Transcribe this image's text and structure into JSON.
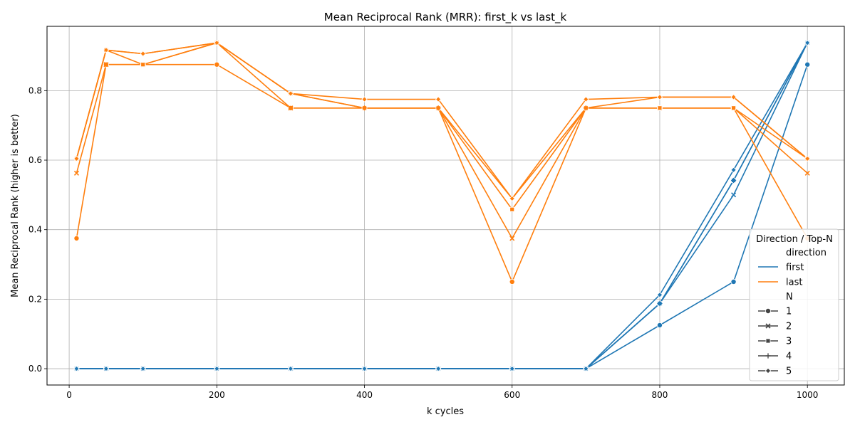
{
  "chart_data": {
    "type": "line",
    "title": "Mean Reciprocal Rank (MRR): first_k vs last_k",
    "xlabel": "k cycles",
    "ylabel": "Mean Reciprocal Rank (higher is better)",
    "xlim": [
      -30,
      1050
    ],
    "ylim": [
      -0.047,
      0.985
    ],
    "x_ticks": [
      0,
      200,
      400,
      600,
      800,
      1000
    ],
    "y_ticks": [
      0.0,
      0.2,
      0.4,
      0.6,
      0.8
    ],
    "y_tick_labels": [
      "0.0",
      "0.2",
      "0.4",
      "0.6",
      "0.8"
    ],
    "grid": true,
    "x": [
      10,
      50,
      100,
      200,
      300,
      400,
      500,
      600,
      700,
      800,
      900,
      1000
    ],
    "colors": {
      "first": "#1f77b4",
      "last": "#ff7f0e",
      "legend_gray": "#444444"
    },
    "series": [
      {
        "direction": "first",
        "N": "1",
        "marker": "circle",
        "values": [
          0,
          0,
          0,
          0,
          0,
          0,
          0,
          0,
          0,
          0.125,
          0.25,
          0.875
        ]
      },
      {
        "direction": "first",
        "N": "2",
        "marker": "x",
        "values": [
          0,
          0,
          0,
          0,
          0,
          0,
          0,
          0,
          0,
          0.1875,
          0.5,
          0.9375
        ]
      },
      {
        "direction": "first",
        "N": "3",
        "marker": "square",
        "values": [
          0,
          0,
          0,
          0,
          0,
          0,
          0,
          0,
          0,
          0.1875,
          0.5417,
          0.9375
        ]
      },
      {
        "direction": "first",
        "N": "4",
        "marker": "plus",
        "values": [
          0,
          0,
          0,
          0,
          0,
          0,
          0,
          0,
          0,
          0.1875,
          0.5417,
          0.9375
        ]
      },
      {
        "direction": "first",
        "N": "5",
        "marker": "diamond",
        "values": [
          0,
          0,
          0,
          0,
          0,
          0,
          0,
          0,
          0,
          0.2125,
          0.5717,
          0.9375
        ]
      },
      {
        "direction": "last",
        "N": "1",
        "marker": "circle",
        "values": [
          0.375,
          0.875,
          0.875,
          0.875,
          0.75,
          0.75,
          0.75,
          0.25,
          0.75,
          0.75,
          0.75,
          0.375
        ]
      },
      {
        "direction": "last",
        "N": "2",
        "marker": "x",
        "values": [
          0.5625,
          0.875,
          0.875,
          0.9375,
          0.75,
          0.75,
          0.75,
          0.375,
          0.75,
          0.75,
          0.75,
          0.5625
        ]
      },
      {
        "direction": "last",
        "N": "3",
        "marker": "square",
        "values": [
          0.6042,
          0.9167,
          0.875,
          0.9375,
          0.7917,
          0.75,
          0.75,
          0.4583,
          0.75,
          0.75,
          0.75,
          0.6042
        ]
      },
      {
        "direction": "last",
        "N": "4",
        "marker": "plus",
        "values": [
          0.6042,
          0.9167,
          0.9062,
          0.9375,
          0.7917,
          0.75,
          0.75,
          0.4896,
          0.75,
          0.7813,
          0.7813,
          0.6042
        ]
      },
      {
        "direction": "last",
        "N": "5",
        "marker": "diamond",
        "values": [
          0.6042,
          0.9167,
          0.9062,
          0.9375,
          0.7917,
          0.775,
          0.775,
          0.4896,
          0.775,
          0.7813,
          0.7813,
          0.6042
        ]
      }
    ],
    "legend": {
      "title": "Direction / Top-N",
      "placement": "lower-right",
      "hue_header": "direction",
      "hue_items": [
        {
          "label": "first",
          "key": "first"
        },
        {
          "label": "last",
          "key": "last"
        }
      ],
      "style_header": "N",
      "style_items": [
        {
          "label": "1",
          "marker": "circle"
        },
        {
          "label": "2",
          "marker": "x"
        },
        {
          "label": "3",
          "marker": "square"
        },
        {
          "label": "4",
          "marker": "plus"
        },
        {
          "label": "5",
          "marker": "diamond"
        }
      ]
    }
  }
}
